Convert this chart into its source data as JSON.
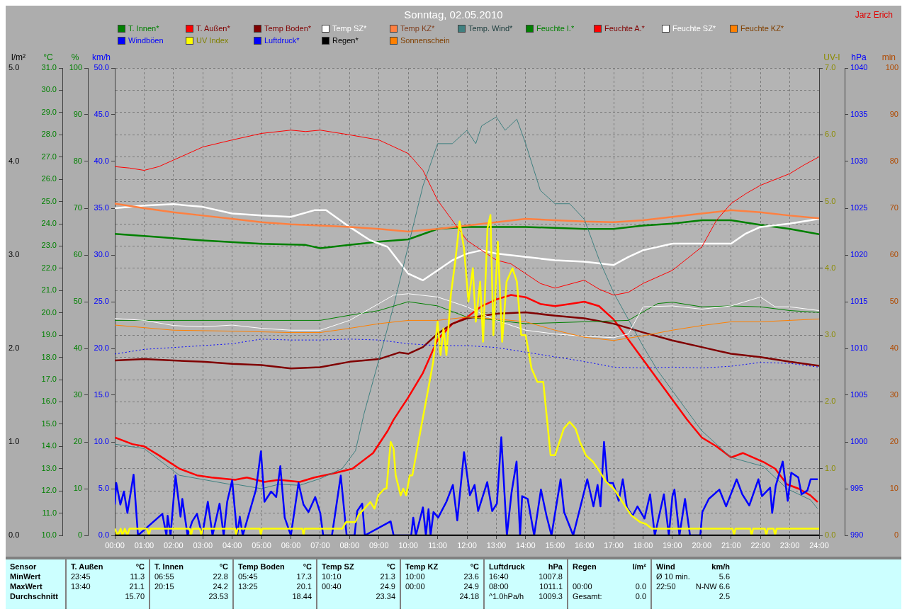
{
  "chart_data": [
    {
      "type": "line",
      "title": "Sonntag, 02.05.2010",
      "annotations": [
        "Jarz Erich",
        "Sensor\nMinWert\nMaxWert\nDurchschnitt",
        "T. Außen\t°C\n23:45\t11.3\n13:40\t21.1\n\t15.70",
        "T. Innen\t°C\n06:55\t22.8\n20:15\t24.2\n\t23.53",
        "Temp Boden\t°C\n05:45\t17.3\n13:25\t20.1\n\t18.44",
        "Temp SZ\t°C\n10:10\t21.3\n00:40\t24.9\n\t23.34",
        "Temp KZ\t°C\n10:00\t23.6\n00:00\t24.9\n\t24.18",
        "Luftdruck\thPa\n16:40\t1007.8\n08:00\t1011.1\n^1.0hPa/h\t1009.3",
        "Regen\tl/m²\n\n00:00\t0.0\nGesamt:\t0.0",
        "Wind\tkm/h\nØ 10 min.\t5.6\n22:50\tN-NW 6.6\n\t2.5"
      ],
      "ylabel": "°C",
      "y2label": "%",
      "y3label": "km/h",
      "xlim": [
        0,
        24
      ],
      "xticks": [
        {
          "value": 0,
          "label": "00:00"
        },
        {
          "value": 1,
          "label": "01:00"
        },
        {
          "value": 2,
          "label": "02:00"
        },
        {
          "value": 3,
          "label": "03:00"
        },
        {
          "value": 4,
          "label": "04:00"
        },
        {
          "value": 5,
          "label": "05:00"
        },
        {
          "value": 6,
          "label": "06:00"
        },
        {
          "value": 7,
          "label": "07:00"
        },
        {
          "value": 8,
          "label": "08:00"
        },
        {
          "value": 9,
          "label": "09:00"
        },
        {
          "value": 10,
          "label": "10:00"
        },
        {
          "value": 11,
          "label": "11:00"
        },
        {
          "value": 12,
          "label": "12:00"
        },
        {
          "value": 13,
          "label": "13:00"
        },
        {
          "value": 14,
          "label": "14:00"
        },
        {
          "value": 15,
          "label": "15:00"
        },
        {
          "value": 16,
          "label": "16:00"
        },
        {
          "value": 17,
          "label": "17:00"
        },
        {
          "value": 18,
          "label": "18:00"
        },
        {
          "value": 19,
          "label": "19:00"
        },
        {
          "value": 20,
          "label": "20:00"
        },
        {
          "value": 21,
          "label": "21:00"
        },
        {
          "value": 22,
          "label": "22:00"
        },
        {
          "value": 23,
          "label": "23:00"
        },
        {
          "value": 24,
          "label": "24:00"
        }
      ],
      "ylim": [
        10,
        31
      ],
      "yticks": [
        {
          "value": 10,
          "label": "10.0"
        },
        {
          "value": 11,
          "label": "11.0"
        },
        {
          "value": 12,
          "label": "12.0"
        },
        {
          "value": 13,
          "label": "13.0"
        },
        {
          "value": 14,
          "label": "14.0"
        },
        {
          "value": 15,
          "label": "15.0"
        },
        {
          "value": 16,
          "label": "16.0"
        },
        {
          "value": 17,
          "label": "17.0"
        },
        {
          "value": 18,
          "label": "18.0"
        },
        {
          "value": 19,
          "label": "19.0"
        },
        {
          "value": 20,
          "label": "20.0"
        },
        {
          "value": 21,
          "label": "21.0"
        },
        {
          "value": 22,
          "label": "22.0"
        },
        {
          "value": 23,
          "label": "23.0"
        },
        {
          "value": 24,
          "label": "24.0"
        },
        {
          "value": 25,
          "label": "25.0"
        },
        {
          "value": 26,
          "label": "26.0"
        },
        {
          "value": 27,
          "label": "27.0"
        },
        {
          "value": 28,
          "label": "28.0"
        },
        {
          "value": 29,
          "label": "29.0"
        },
        {
          "value": 30,
          "label": "30.0"
        },
        {
          "value": 31,
          "label": "31.0"
        }
      ],
      "y2lim": [
        0,
        100
      ],
      "y2ticks": [
        0,
        10,
        20,
        30,
        40,
        50,
        60,
        70,
        80,
        90,
        100
      ],
      "y3lim": [
        0,
        50
      ],
      "y3ticks": [
        {
          "value": 0,
          "label": "0.0"
        },
        {
          "value": 5,
          "label": "5.0"
        },
        {
          "value": 10,
          "label": "10.0"
        },
        {
          "value": 15,
          "label": "15.0"
        },
        {
          "value": 20,
          "label": "20.0"
        },
        {
          "value": 25,
          "label": "25.0"
        },
        {
          "value": 30,
          "label": "30.0"
        },
        {
          "value": 35,
          "label": "35.0"
        },
        {
          "value": 40,
          "label": "40.0"
        },
        {
          "value": 45,
          "label": "45.0"
        },
        {
          "value": 50,
          "label": "50.0"
        }
      ],
      "grid": true,
      "legend": "top",
      "marker": "none",
      "series": [
        {
          "name": "T. Innen*",
          "color": "#008000",
          "x": [
            0,
            1.5,
            3,
            5,
            6.5,
            7,
            8,
            9,
            10,
            11,
            12,
            14,
            16,
            17,
            18,
            19,
            20,
            21,
            22,
            23,
            24
          ],
          "values": [
            23.55,
            23.4,
            23.25,
            23.1,
            23.05,
            22.9,
            23.05,
            23.2,
            23.3,
            23.77,
            23.86,
            23.86,
            23.77,
            23.77,
            23.92,
            24.01,
            24.16,
            24.16,
            23.95,
            23.77,
            23.53
          ]
        },
        {
          "name": "T. Außen*",
          "color": "#ff0000",
          "x": [
            0,
            0.6,
            1,
            1.5,
            2.2,
            2.8,
            3.3,
            4.1,
            4.5,
            5.1,
            5.6,
            6.3,
            6.8,
            7.5,
            8.1,
            8.8,
            9.3,
            9.5,
            10,
            10.5,
            11,
            11.5,
            12,
            12.5,
            13,
            13.5,
            14,
            14.5,
            15,
            15.5,
            16,
            16.5,
            17,
            17.5,
            18,
            18.5,
            19,
            19.5,
            20,
            20.5,
            21,
            21.4,
            22.1,
            22.5,
            22.9,
            23.3,
            23.7,
            23.95
          ],
          "values": [
            14.4,
            14.1,
            14,
            13.6,
            13,
            12.7,
            12.6,
            12.5,
            12.6,
            12.4,
            12.5,
            12.4,
            12.6,
            12.8,
            13,
            13.7,
            14.7,
            15.2,
            16.2,
            17.3,
            18.8,
            19.5,
            19.8,
            20.3,
            20.6,
            20.8,
            20.7,
            20.4,
            20.3,
            20.4,
            20.5,
            20.3,
            19.7,
            18.8,
            17.9,
            17,
            16.1,
            15.2,
            14.4,
            14,
            13.5,
            13.7,
            13.3,
            13,
            12.3,
            12.1,
            11.8,
            11.5
          ]
        },
        {
          "name": "Temp Boden*",
          "color": "#800000",
          "x": [
            0,
            1,
            2,
            3,
            4,
            5,
            6,
            7,
            8,
            9,
            9.7,
            10,
            10.5,
            11,
            11.5,
            12,
            13,
            14,
            15,
            16,
            17,
            18,
            19,
            20,
            21,
            22,
            23,
            24
          ],
          "values": [
            17.86,
            17.92,
            17.86,
            17.8,
            17.71,
            17.65,
            17.5,
            17.56,
            17.8,
            17.92,
            18.22,
            18.16,
            18.46,
            19.06,
            19.51,
            19.75,
            19.96,
            20.02,
            19.87,
            19.75,
            19.51,
            19.12,
            18.76,
            18.46,
            18.16,
            18.01,
            17.8,
            17.62
          ]
        },
        {
          "name": "Temp SZ*",
          "color": "#ffffff",
          "x": [
            0,
            1,
            2,
            3,
            4,
            5,
            6,
            6.8,
            7.2,
            8,
            8.7,
            9.3,
            10,
            10.5,
            11,
            11.5,
            12,
            12.5,
            13,
            14,
            15,
            16,
            17,
            17.5,
            18,
            19,
            20,
            21,
            21.5,
            22,
            23,
            24
          ],
          "values": [
            24.7,
            24.82,
            24.88,
            24.76,
            24.46,
            24.37,
            24.31,
            24.61,
            24.61,
            23.86,
            23.26,
            22.96,
            21.76,
            21.46,
            21.91,
            22.36,
            22.66,
            22.81,
            22.66,
            22.51,
            22.36,
            22.3,
            22.15,
            22.51,
            22.81,
            23.11,
            23.11,
            23.11,
            23.56,
            23.86,
            24.01,
            24.22
          ]
        },
        {
          "name": "Temp KZ*",
          "color": "#ff8040",
          "x": [
            0,
            1,
            2,
            3,
            4,
            5,
            6,
            7,
            8,
            9,
            10,
            11,
            12,
            13,
            14,
            15,
            16,
            17,
            18,
            19,
            20,
            21,
            22,
            23,
            24
          ],
          "values": [
            24.91,
            24.7,
            24.52,
            24.37,
            24.22,
            24.07,
            23.98,
            23.92,
            23.86,
            23.77,
            23.65,
            23.77,
            23.92,
            24.07,
            24.22,
            24.16,
            24.1,
            24.07,
            24.16,
            24.31,
            24.46,
            24.61,
            24.52,
            24.37,
            24.25
          ]
        },
        {
          "name": "Temp. Wind*",
          "color": "#408080",
          "x": [
            0,
            1,
            2.2,
            3.9,
            4.1,
            5,
            5.6,
            6.3,
            7,
            7.75,
            8.2,
            8.5,
            9,
            9.5,
            10,
            10.5,
            11,
            11.5,
            12,
            12.3,
            12.5,
            13,
            13.3,
            13.7,
            14,
            14.5,
            15,
            15.5,
            16,
            16.5,
            17,
            17.5,
            18,
            18.5,
            19,
            19.5,
            20,
            20.5,
            21,
            22.1,
            22.9,
            23.7,
            23.95
          ],
          "values": [
            14.1,
            13.9,
            12.7,
            12.3,
            12.3,
            12.1,
            12.3,
            12.25,
            12.55,
            13,
            13.8,
            15.5,
            17.9,
            20.3,
            23,
            25.7,
            27.6,
            27.6,
            28.2,
            27.6,
            28.4,
            28.8,
            28.2,
            28.7,
            27.6,
            25.5,
            24.9,
            24.9,
            24.2,
            22.4,
            20.9,
            19.7,
            18.5,
            17.4,
            16.5,
            15.6,
            14.7,
            14.1,
            13.5,
            13.1,
            12.1,
            11.6,
            11.2
          ]
        },
        {
          "name": "Feuchte I.*",
          "color": "#008000",
          "axis": "y2",
          "x": [
            0,
            7,
            8,
            9,
            10,
            11,
            12,
            13,
            14,
            16,
            17.5,
            18.5,
            19,
            20,
            21,
            22,
            23,
            24
          ],
          "values": [
            46,
            46,
            47.1,
            48.1,
            50,
            49.1,
            46.7,
            46,
            45.3,
            45.7,
            46,
            49.6,
            49.9,
            48.9,
            49.1,
            48.9,
            48.1,
            47.7
          ]
        },
        {
          "name": "Feuchte A.*",
          "color": "#ff0000",
          "axis": "y2",
          "x": [
            0,
            0.5,
            1,
            1.5,
            2,
            3,
            4,
            5,
            6,
            6.5,
            7,
            8,
            9,
            10,
            10.5,
            11,
            11.5,
            12,
            12.5,
            13,
            13.5,
            14,
            14.5,
            15,
            16,
            16.5,
            17,
            17.5,
            18,
            19,
            20,
            20.5,
            21,
            21.5,
            22,
            23,
            23.5,
            24
          ],
          "values": [
            78.9,
            78.6,
            78.1,
            78.9,
            80.3,
            83.1,
            84.6,
            86,
            86.7,
            86.4,
            86.7,
            85.7,
            84.6,
            81.7,
            78.1,
            71.7,
            67.4,
            63.1,
            61,
            58.9,
            58.1,
            56,
            53.9,
            52.9,
            54.6,
            52.7,
            51.4,
            52,
            53.9,
            56.7,
            61.7,
            67.4,
            71,
            73.1,
            74.9,
            77.4,
            79.3,
            81
          ]
        },
        {
          "name": "Feuchte SZ*",
          "color": "#ffffff",
          "axis": "y2",
          "x": [
            0,
            1,
            2,
            3,
            4,
            5,
            6,
            7,
            8,
            9,
            9.5,
            10,
            11,
            12,
            12.5,
            13,
            14,
            15,
            16,
            17,
            17.5,
            18,
            19,
            20,
            21,
            22,
            22.5,
            23,
            24
          ],
          "values": [
            46.4,
            46,
            44.9,
            44.6,
            45,
            44.3,
            43.9,
            43.9,
            46,
            49.6,
            51.4,
            51.7,
            51,
            48.9,
            47.4,
            46,
            43.9,
            43.1,
            42.6,
            42.3,
            43.1,
            48.9,
            49.1,
            48.4,
            49.1,
            51,
            48.9,
            48.9,
            48.1
          ]
        },
        {
          "name": "Feuchte KZ*",
          "color": "#ff8000",
          "axis": "y2",
          "x": [
            0,
            2,
            4,
            6,
            7,
            8,
            9,
            10,
            11,
            12,
            13,
            14,
            15,
            16,
            17,
            18,
            19,
            20,
            21,
            22,
            23,
            24
          ],
          "values": [
            45,
            43.9,
            43.7,
            43.4,
            43.4,
            44.3,
            45.3,
            46,
            46,
            46.7,
            46.3,
            45.7,
            43.9,
            42.4,
            41.7,
            42.7,
            43.9,
            44.9,
            45.7,
            45.7,
            46,
            46.3
          ]
        },
        {
          "name": "Windböen",
          "color": "#0000ff",
          "axis": "y3",
          "x": [
            0,
            0.05,
            0.19,
            0.31,
            0.43,
            0.64,
            0.79,
            1.62,
            1.76,
            1.8,
            1.9,
            2.07,
            2.24,
            2.3,
            2.48,
            2.64,
            2.8,
            2.98,
            3.17,
            3.33,
            3.57,
            3.71,
            3.83,
            4,
            4.17,
            4.26,
            4.36,
            4.81,
            4.98,
            5.1,
            5.33,
            5.5,
            5.64,
            5.79,
            6,
            6.26,
            6.43,
            6.6,
            6.83,
            7,
            7.1,
            7.4,
            7.7,
            7.9,
            8.17,
            8.26,
            8.43,
            8.52,
            9.4,
            9.5,
            10.1,
            10.17,
            10.26,
            10.5,
            10.6,
            10.69,
            10.76,
            10.86,
            11.02,
            11.3,
            11.52,
            11.67,
            11.9,
            12.1,
            12.26,
            12.38,
            12.69,
            12.86,
            13.02,
            13.17,
            13.36,
            13.52,
            13.69,
            13.81,
            13.88,
            14.07,
            14.29,
            14.52,
            14.71,
            14.88,
            15.19,
            15.31,
            15.62,
            16.1,
            16.31,
            16.45,
            16.55,
            16.67,
            16.79,
            16.98,
            17.17,
            17.31,
            17.45,
            17.64,
            17.81,
            18.05,
            18.24,
            18.4,
            18.71,
            18.88,
            19,
            19.07,
            19.24,
            19.43,
            19.6,
            19.95,
            20.02,
            20.24,
            20.6,
            20.83,
            21.19,
            21.38,
            21.62,
            21.93,
            22.05,
            22.33,
            22.4,
            22.52,
            22.76,
            22.93,
            23.05,
            23.29,
            23.4,
            23.6,
            23.71,
            23.95
          ],
          "values": [
            3.3,
            5.6,
            3.3,
            4.7,
            2.4,
            6.5,
            0,
            2.3,
            0,
            2.1,
            0,
            6.4,
            2,
            3.9,
            0,
            1.5,
            2.3,
            0,
            3.6,
            0,
            3.4,
            0,
            3.6,
            5.9,
            0,
            2,
            0,
            4.9,
            9,
            3.6,
            4.7,
            4.1,
            7.4,
            1.9,
            0,
            5.6,
            3.3,
            2.5,
            4.1,
            2.4,
            0,
            0,
            6.4,
            0,
            0,
            2.6,
            3.4,
            0,
            1.5,
            0,
            0,
            1.9,
            0,
            3,
            0,
            2.8,
            0,
            2.5,
            1.9,
            3.6,
            5.4,
            1.6,
            8.9,
            4.3,
            5.4,
            2.6,
            5.7,
            2.6,
            3.4,
            10.5,
            0,
            4.6,
            7.9,
            0,
            4.2,
            3.9,
            0,
            4.9,
            2.1,
            0,
            6,
            2.5,
            0,
            6,
            3.1,
            5.4,
            3.1,
            10,
            5.6,
            5.6,
            3.7,
            6,
            3,
            2.1,
            3.1,
            1.8,
            4.4,
            0,
            4.4,
            0,
            4.2,
            4.9,
            0,
            3.9,
            0,
            0,
            2.5,
            3.9,
            4.9,
            3.1,
            6,
            4.4,
            3.2,
            6,
            4.2,
            5.1,
            2.4,
            5.3,
            7.9,
            3.7,
            6.7,
            6.2,
            4.4,
            4.8,
            6,
            6
          ]
        }
      ]
    },
    {
      "type": "line",
      "xticks": [
        0,
        1,
        2,
        3,
        4,
        5,
        6,
        7,
        8,
        9,
        10,
        11,
        12,
        13,
        14,
        15,
        16,
        17,
        18,
        19,
        20,
        21,
        22,
        23,
        24
      ],
      "ylabel": "UV-I",
      "y2label": "hPa",
      "xlim": [
        0,
        24
      ],
      "tick_labels": "y",
      "legend": "top",
      "marker": "none",
      "ylim": [
        0,
        7
      ],
      "yticks": [
        {
          "value": 0,
          "label": "0.0"
        },
        {
          "value": 1,
          "label": "1.0"
        },
        {
          "value": 2,
          "label": "2.0"
        },
        {
          "value": 3,
          "label": "3.0"
        },
        {
          "value": 4,
          "label": "4.0"
        },
        {
          "value": 5,
          "label": "5.0"
        },
        {
          "value": 6,
          "label": "6.0"
        },
        {
          "value": 7,
          "label": "7.0"
        }
      ],
      "y2lim": [
        990,
        1040
      ],
      "y2ticks": [
        990,
        995,
        1000,
        1005,
        1010,
        1015,
        1020,
        1025,
        1030,
        1035,
        1040
      ],
      "series": [
        {
          "name": "UV Index",
          "color": "#ffff00",
          "x": [
            0,
            0.1,
            0.2,
            0.26,
            0.34,
            0.43,
            0.5,
            1.1,
            1.16,
            1.22,
            2.55,
            2.6,
            2.65,
            2.9,
            2.95,
            3,
            4.1,
            4.14,
            4.18,
            4.94,
            4.98,
            5.02,
            6.39,
            6.43,
            6.47,
            7.75,
            7.88,
            8.2,
            8.3,
            8.5,
            8.71,
            8.85,
            8.98,
            9.19,
            9.26,
            9.4,
            9.5,
            9.57,
            9.74,
            9.83,
            9.93,
            10.05,
            10.14,
            10.43,
            10.6,
            10.85,
            11,
            11.1,
            11.2,
            11.3,
            11.45,
            11.6,
            11.75,
            11.9,
            12.05,
            12.2,
            12.3,
            12.45,
            12.55,
            12.7,
            12.8,
            12.9,
            13.05,
            13.2,
            13.35,
            13.55,
            13.7,
            13.85,
            14,
            14.2,
            14.4,
            14.6,
            14.85,
            15,
            15.3,
            15.5,
            15.7,
            15.85,
            16.05,
            16.3,
            16.5,
            16.75,
            17,
            17.3,
            17.6,
            17.9,
            18.1,
            18.3,
            21.05,
            21.1,
            21.15,
            21.65,
            21.7,
            21.75,
            22.15,
            22.2,
            22.25,
            22.45,
            22.5,
            22.55,
            24
          ],
          "values": [
            0.1,
            0,
            0.1,
            0,
            0.1,
            0,
            0.1,
            0.1,
            0,
            0.1,
            0.1,
            0,
            0.1,
            0.1,
            0,
            0.1,
            0.1,
            0,
            0.1,
            0.1,
            0,
            0.1,
            0.1,
            0,
            0.1,
            0.1,
            0.2,
            0.2,
            0.3,
            0.4,
            0.5,
            0.4,
            0.6,
            0.7,
            0.7,
            1.4,
            1.3,
            0.9,
            0.6,
            0.7,
            0.6,
            0.9,
            0.9,
            1.6,
            2,
            2.6,
            3.2,
            2.7,
            3.1,
            2.7,
            3.6,
            4.1,
            4.7,
            4.3,
            3.5,
            4,
            3.2,
            3.8,
            2.9,
            4.6,
            4.8,
            3,
            4.4,
            2.9,
            3.8,
            4,
            3.8,
            3,
            3,
            2.5,
            2.3,
            2.3,
            1.2,
            1.2,
            1.6,
            1.7,
            1.6,
            1.4,
            1.2,
            1.1,
            0.97,
            0.8,
            0.7,
            0.5,
            0.3,
            0.2,
            0.17,
            0.1,
            0.1,
            0,
            0.1,
            0.1,
            0,
            0.1,
            0.1,
            0,
            0.1,
            0.1,
            0,
            0.1,
            0.1
          ]
        },
        {
          "name": "Luftdruck*",
          "color": "#0000ff",
          "axis": "y2",
          "line_style": "dotted",
          "x": [
            0,
            1,
            2,
            3,
            4,
            5,
            6,
            7,
            8,
            9,
            10,
            11,
            12,
            13,
            14,
            15,
            16,
            17,
            18,
            19,
            20,
            21,
            22,
            23,
            24
          ],
          "values": [
            1009.4,
            1009.9,
            1010.1,
            1010.3,
            1010.5,
            1011,
            1010.9,
            1010.9,
            1011,
            1010.9,
            1010.5,
            1010.3,
            1010.3,
            1010.1,
            1009.6,
            1009.1,
            1008.6,
            1008,
            1007.9,
            1008,
            1007.9,
            1008.1,
            1008.5,
            1008.4,
            1008
          ]
        }
      ]
    },
    {
      "type": "line",
      "xticks": [
        0,
        1,
        2,
        3,
        4,
        5,
        6,
        7,
        8,
        9,
        10,
        11,
        12,
        13,
        14,
        15,
        16,
        17,
        18,
        19,
        20,
        21,
        22,
        23,
        24
      ],
      "ylabel": "l/m²",
      "y2label": "min",
      "xlim": [
        0,
        24
      ],
      "tick_labels": "y",
      "legend": "top",
      "marker": "none",
      "ylim": [
        0,
        5
      ],
      "yticks": [
        {
          "value": 0,
          "label": "0.0"
        },
        {
          "value": 1,
          "label": "1.0"
        },
        {
          "value": 2,
          "label": "2.0"
        },
        {
          "value": 3,
          "label": "3.0"
        },
        {
          "value": 4,
          "label": "4.0"
        },
        {
          "value": 5,
          "label": "5.0"
        }
      ],
      "y2lim": [
        0,
        100
      ],
      "y2ticks": [
        0,
        10,
        20,
        30,
        40,
        50,
        60,
        70,
        80,
        90,
        100
      ],
      "series": [
        {
          "name": "Regen*",
          "color": "#000000",
          "x": [
            0,
            24
          ],
          "values": [
            0,
            0
          ]
        },
        {
          "name": "Sonnenschein",
          "color": "#ff8000",
          "axis": "y2",
          "values": [
            null
          ]
        }
      ]
    }
  ]
}
